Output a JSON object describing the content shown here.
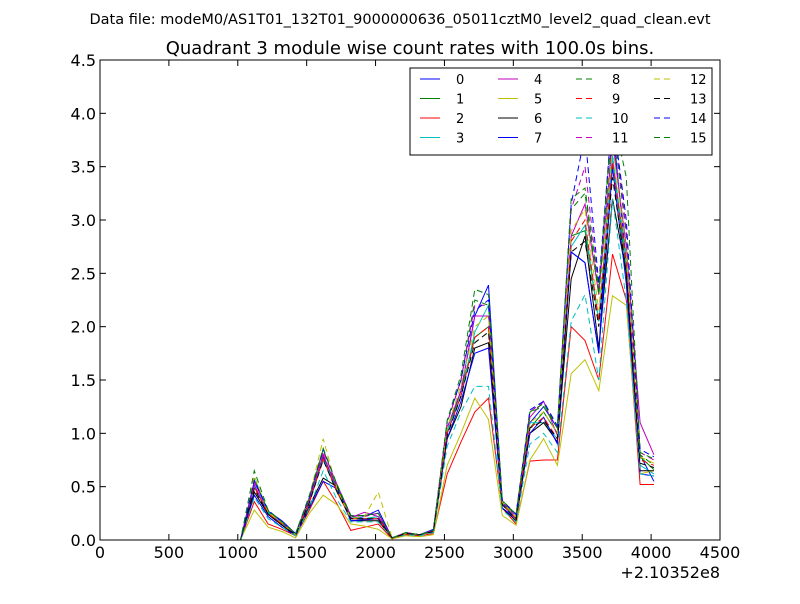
{
  "header": {
    "data_file": "Data file: modeM0/AS1T01_132T01_9000000636_05011cztM0_level2_quad_clean.evt"
  },
  "chart_data": {
    "type": "line",
    "title": "Quadrant 3 module wise count rates with 100.0s bins.",
    "xlabel": "",
    "ylabel": "",
    "xlim": [
      0,
      4500
    ],
    "ylim": [
      0,
      4.5
    ],
    "x_offset_label": "+2.10352e8",
    "grid": false,
    "legend_position": "top-right",
    "legend_columns": 4,
    "x_ticks": [
      0,
      500,
      1000,
      1500,
      2000,
      2500,
      3000,
      3500,
      4000,
      4500
    ],
    "x_tick_labels": [
      "0",
      "500",
      "1000",
      "1500",
      "2000",
      "2500",
      "3000",
      "3500",
      "4000",
      "4500"
    ],
    "y_ticks": [
      0,
      0.5,
      1.0,
      1.5,
      2.0,
      2.5,
      3.0,
      3.5,
      4.0,
      4.5
    ],
    "y_tick_labels": [
      "0.0",
      "0.5",
      "1.0",
      "1.5",
      "2.0",
      "2.5",
      "3.0",
      "3.5",
      "4.0",
      "4.5"
    ],
    "x": [
      420,
      520,
      620,
      720,
      820,
      920,
      1020,
      1120,
      1220,
      1320,
      1420,
      1520,
      1620,
      1720,
      1820,
      1920,
      2020,
      2120,
      2220,
      2320,
      2420,
      2520,
      2620,
      2720,
      2820,
      2920,
      3020,
      3120,
      3220,
      3320,
      3420,
      3520,
      3620,
      3720,
      3820,
      3920,
      4020
    ],
    "base_profile": [
      0,
      0,
      0,
      0,
      0,
      0,
      0,
      0.5,
      0.25,
      0.15,
      0.05,
      0.35,
      0.75,
      0.45,
      0.2,
      0.2,
      0.2,
      0.02,
      0.06,
      0.05,
      0.08,
      1.0,
      1.35,
      1.9,
      1.95,
      0.33,
      0.2,
      1.05,
      1.15,
      0.95,
      2.75,
      2.95,
      2.0,
      3.5,
      2.55,
      0.75,
      0.7
    ],
    "series": [
      {
        "name": "0",
        "color": "#0000ff",
        "dash": "solid",
        "scale": 1.05,
        "values": [
          0,
          0,
          0,
          0,
          0,
          0,
          0,
          0.55,
          0.27,
          0.18,
          0.06,
          0.38,
          0.78,
          0.5,
          0.2,
          0.22,
          0.28,
          0.02,
          0.06,
          0.05,
          0.1,
          1.05,
          1.4,
          2.1,
          2.39,
          0.35,
          0.24,
          1.1,
          1.25,
          1.05,
          2.7,
          2.6,
          1.75,
          3.9,
          2.6,
          0.8,
          0.55
        ]
      },
      {
        "name": "1",
        "color": "#008000",
        "dash": "solid",
        "scale": 1.0,
        "values": [
          0,
          0,
          0,
          0,
          0,
          0,
          0,
          0.5,
          0.25,
          0.14,
          0.05,
          0.36,
          0.8,
          0.46,
          0.2,
          0.2,
          0.22,
          0.02,
          0.06,
          0.05,
          0.08,
          1.0,
          1.4,
          1.9,
          2.0,
          0.34,
          0.22,
          1.05,
          1.2,
          1.0,
          2.85,
          2.9,
          2.05,
          3.6,
          2.5,
          0.78,
          0.66
        ]
      },
      {
        "name": "2",
        "color": "#ff0000",
        "dash": "solid",
        "scale": 0.75,
        "values": [
          0,
          0,
          0,
          0,
          0,
          0,
          0,
          0.36,
          0.15,
          0.1,
          0.04,
          0.28,
          0.55,
          0.34,
          0.09,
          0.12,
          0.15,
          0.01,
          0.05,
          0.04,
          0.06,
          0.62,
          0.92,
          1.2,
          1.33,
          0.3,
          0.15,
          0.74,
          0.75,
          0.75,
          2.0,
          1.87,
          1.5,
          2.68,
          2.25,
          0.52,
          0.52
        ]
      },
      {
        "name": "3",
        "color": "#00bfbf",
        "dash": "solid",
        "scale": 1.02,
        "values": [
          0,
          0,
          0,
          0,
          0,
          0,
          0,
          0.5,
          0.26,
          0.15,
          0.05,
          0.36,
          0.76,
          0.47,
          0.22,
          0.2,
          0.22,
          0.02,
          0.06,
          0.05,
          0.08,
          1.02,
          1.35,
          1.95,
          2.2,
          0.33,
          0.2,
          1.1,
          1.1,
          0.95,
          2.75,
          2.95,
          2.05,
          3.6,
          2.6,
          0.7,
          0.62
        ]
      },
      {
        "name": "4",
        "color": "#bf00bf",
        "dash": "solid",
        "scale": 1.05,
        "values": [
          0,
          0,
          0,
          0,
          0,
          0,
          0,
          0.52,
          0.24,
          0.16,
          0.05,
          0.38,
          0.8,
          0.48,
          0.21,
          0.26,
          0.22,
          0.02,
          0.06,
          0.05,
          0.09,
          1.05,
          1.4,
          2.1,
          2.1,
          0.35,
          0.22,
          1.15,
          1.3,
          0.98,
          2.85,
          3.15,
          2.3,
          3.75,
          2.75,
          1.1,
          0.8
        ]
      },
      {
        "name": "5",
        "color": "#bfbf00",
        "dash": "solid",
        "scale": 0.7,
        "values": [
          0,
          0,
          0,
          0,
          0,
          0,
          0,
          0.28,
          0.12,
          0.08,
          0.02,
          0.25,
          0.42,
          0.33,
          0.15,
          0.13,
          0.1,
          0.01,
          0.04,
          0.03,
          0.05,
          0.7,
          1.0,
          1.33,
          1.13,
          0.23,
          0.14,
          0.75,
          0.95,
          0.7,
          1.56,
          1.69,
          1.4,
          2.29,
          2.2,
          0.62,
          0.65
        ]
      },
      {
        "name": "6",
        "color": "#000000",
        "dash": "solid",
        "scale": 0.95,
        "values": [
          0,
          0,
          0,
          0,
          0,
          0,
          0,
          0.45,
          0.24,
          0.14,
          0.04,
          0.32,
          0.58,
          0.5,
          0.18,
          0.18,
          0.18,
          0.02,
          0.06,
          0.05,
          0.08,
          0.95,
          1.25,
          1.8,
          1.85,
          0.3,
          0.18,
          1.0,
          1.1,
          0.92,
          2.45,
          2.85,
          1.8,
          3.2,
          2.5,
          0.65,
          0.65
        ]
      },
      {
        "name": "7",
        "color": "#0000ff",
        "dash": "solid",
        "scale": 0.95,
        "values": [
          0,
          0,
          0,
          0,
          0,
          0,
          0,
          0.42,
          0.22,
          0.12,
          0.04,
          0.3,
          0.55,
          0.48,
          0.18,
          0.19,
          0.2,
          0.02,
          0.06,
          0.05,
          0.08,
          0.95,
          1.3,
          1.75,
          1.8,
          0.3,
          0.2,
          1.0,
          1.15,
          0.9,
          2.7,
          2.6,
          1.75,
          3.5,
          2.4,
          0.62,
          0.6
        ]
      },
      {
        "name": "8",
        "color": "#008000",
        "dash": "dashed",
        "scale": 1.08,
        "values": [
          0,
          0,
          0,
          0,
          0,
          0,
          0,
          0.58,
          0.27,
          0.17,
          0.06,
          0.4,
          0.85,
          0.5,
          0.22,
          0.23,
          0.25,
          0.02,
          0.07,
          0.05,
          0.09,
          1.1,
          1.5,
          2.25,
          2.2,
          0.36,
          0.24,
          1.2,
          1.25,
          1.05,
          3.1,
          3.25,
          2.3,
          3.95,
          2.85,
          0.8,
          0.7
        ]
      },
      {
        "name": "9",
        "color": "#ff0000",
        "dash": "dashed",
        "scale": 1.0,
        "values": [
          0,
          0,
          0,
          0,
          0,
          0,
          0,
          0.5,
          0.25,
          0.15,
          0.05,
          0.35,
          0.76,
          0.45,
          0.2,
          0.2,
          0.2,
          0.02,
          0.06,
          0.05,
          0.08,
          1.0,
          1.35,
          1.9,
          2.0,
          0.33,
          0.2,
          1.05,
          1.15,
          0.95,
          2.8,
          3.0,
          2.05,
          3.55,
          2.6,
          0.75,
          0.7
        ]
      },
      {
        "name": "10",
        "color": "#00bfbf",
        "dash": "dashed",
        "scale": 0.85,
        "values": [
          0,
          0,
          0,
          0,
          0,
          0,
          0,
          0.4,
          0.2,
          0.12,
          0.04,
          0.3,
          0.65,
          0.38,
          0.17,
          0.17,
          0.17,
          0.02,
          0.05,
          0.04,
          0.07,
          0.88,
          1.2,
          1.44,
          1.44,
          0.28,
          0.17,
          0.9,
          1.0,
          0.82,
          2.05,
          2.3,
          1.5,
          3.2,
          2.25,
          0.62,
          0.6
        ]
      },
      {
        "name": "11",
        "color": "#bf00bf",
        "dash": "dashed",
        "scale": 1.1,
        "values": [
          0,
          0,
          0,
          0,
          0,
          0,
          0,
          0.55,
          0.28,
          0.17,
          0.06,
          0.4,
          0.83,
          0.52,
          0.23,
          0.22,
          0.25,
          0.02,
          0.07,
          0.05,
          0.09,
          1.1,
          1.5,
          2.2,
          2.2,
          0.37,
          0.24,
          1.2,
          1.3,
          1.05,
          3.1,
          3.5,
          2.35,
          4.05,
          2.9,
          0.82,
          0.75
        ]
      },
      {
        "name": "12",
        "color": "#bfbf00",
        "dash": "dashed",
        "scale": 1.05,
        "values": [
          0,
          0,
          0,
          0,
          0,
          0,
          0,
          0.6,
          0.26,
          0.16,
          0.05,
          0.4,
          0.95,
          0.48,
          0.2,
          0.22,
          0.45,
          0.02,
          0.06,
          0.05,
          0.08,
          1.05,
          1.45,
          2.0,
          2.1,
          0.35,
          0.22,
          1.1,
          1.2,
          1.0,
          2.9,
          3.1,
          2.15,
          3.7,
          2.7,
          0.78,
          0.72
        ]
      },
      {
        "name": "13",
        "color": "#000000",
        "dash": "dashed",
        "scale": 1.0,
        "values": [
          0,
          0,
          0,
          0,
          0,
          0,
          0,
          0.48,
          0.24,
          0.14,
          0.05,
          0.35,
          0.75,
          0.45,
          0.2,
          0.2,
          0.2,
          0.02,
          0.06,
          0.05,
          0.08,
          0.98,
          1.35,
          1.85,
          1.95,
          0.33,
          0.2,
          1.05,
          1.12,
          0.95,
          2.7,
          2.8,
          2.0,
          3.4,
          2.5,
          0.72,
          0.68
        ]
      },
      {
        "name": "14",
        "color": "#0000ff",
        "dash": "dashed",
        "scale": 1.12,
        "values": [
          0,
          0,
          0,
          0,
          0,
          0,
          0,
          0.56,
          0.28,
          0.17,
          0.06,
          0.4,
          0.85,
          0.52,
          0.23,
          0.23,
          0.25,
          0.02,
          0.07,
          0.05,
          0.09,
          1.12,
          1.5,
          2.15,
          2.25,
          0.37,
          0.24,
          1.22,
          1.3,
          1.07,
          3.15,
          3.8,
          2.4,
          4.0,
          3.0,
          0.85,
          0.78
        ]
      },
      {
        "name": "15",
        "color": "#008000",
        "dash": "dashed",
        "scale": 1.1,
        "values": [
          0,
          0,
          0,
          0,
          0,
          0,
          0,
          0.65,
          0.28,
          0.17,
          0.06,
          0.42,
          0.86,
          0.52,
          0.23,
          0.23,
          0.25,
          0.02,
          0.07,
          0.05,
          0.09,
          1.12,
          1.55,
          2.35,
          2.3,
          0.37,
          0.24,
          1.2,
          1.28,
          1.05,
          3.2,
          3.3,
          2.35,
          4.0,
          3.4,
          0.82,
          0.76
        ]
      }
    ]
  }
}
